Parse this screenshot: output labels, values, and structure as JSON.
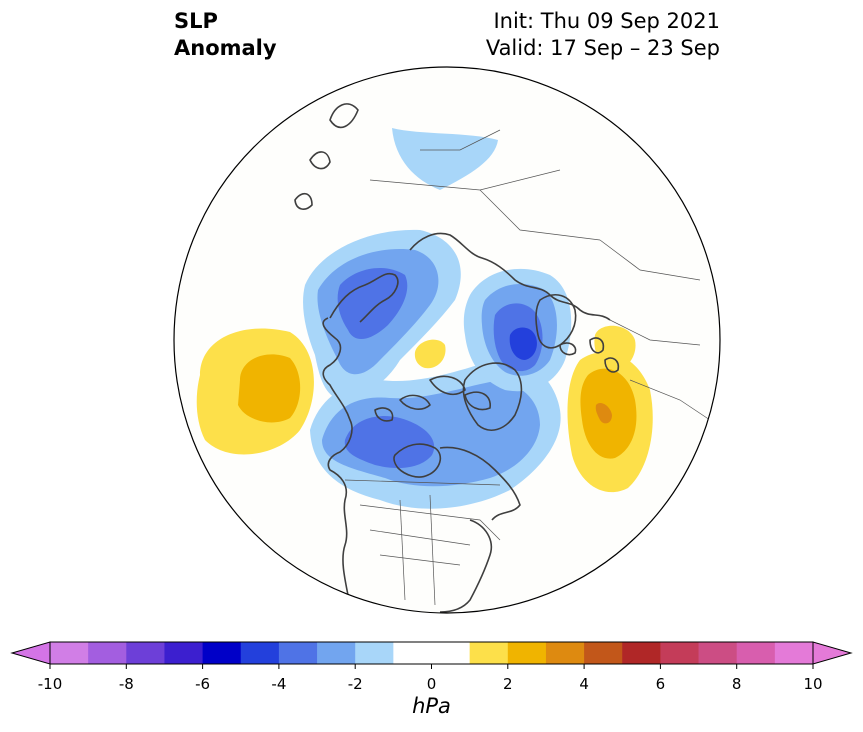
{
  "title": {
    "left": [
      "SLP",
      "Anomaly"
    ],
    "right": [
      "Init: Thu 09 Sep 2021",
      "Valid: 17 Sep – 23 Sep"
    ]
  },
  "map": {
    "projection": "north-polar-stereographic",
    "region": "Northern Hemisphere (Arctic to North America)",
    "anomaly_features": [
      {
        "name": "North Pacific high",
        "sign": "positive",
        "peak_hpa": 3
      },
      {
        "name": "Alaska/Bering low",
        "sign": "negative",
        "peak_hpa": -4
      },
      {
        "name": "Arctic Ocean high",
        "sign": "positive",
        "peak_hpa": 1
      },
      {
        "name": "Scandinavia/Barents low",
        "sign": "negative",
        "peak_hpa": -5
      },
      {
        "name": "Canada low",
        "sign": "negative",
        "peak_hpa": -3
      },
      {
        "name": "North Atlantic high",
        "sign": "positive",
        "peak_hpa": 4
      },
      {
        "name": "Siberia weak low",
        "sign": "negative",
        "peak_hpa": -1
      },
      {
        "name": "Eastern Europe high",
        "sign": "positive",
        "peak_hpa": 2
      }
    ]
  },
  "colorbar": {
    "unit": "hPa",
    "ticks": [
      "-10",
      "-8",
      "-6",
      "-4",
      "-2",
      "0",
      "2",
      "4",
      "6",
      "8",
      "10"
    ],
    "extend": "both",
    "colors": [
      "#d17ee6",
      "#a35ee0",
      "#6d3fd8",
      "#3c1fcf",
      "#0000c8",
      "#2340dc",
      "#4f73e6",
      "#72a5ef",
      "#a8d6f9",
      "#ffffff",
      "#ffffff",
      "#fde04a",
      "#f0b400",
      "#de8a10",
      "#c2571a",
      "#b02727",
      "#c43c59",
      "#cc4d84",
      "#d85eae",
      "#e47ad8"
    ],
    "under_color": "#d474e6",
    "over_color": "#e47ad8"
  }
}
